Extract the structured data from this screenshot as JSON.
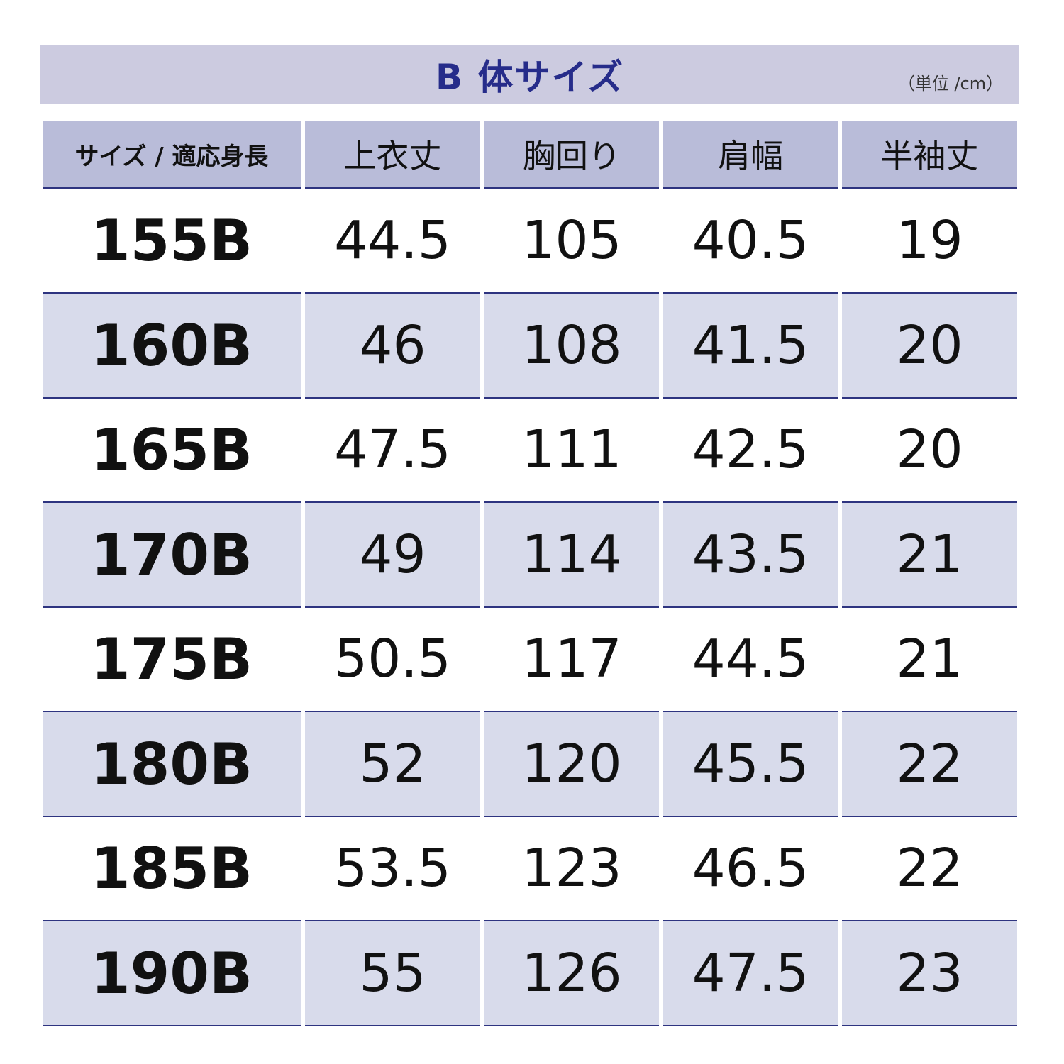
{
  "header": {
    "title": "B 体サイズ",
    "unit": "（単位 /cm）"
  },
  "table": {
    "columns": [
      "サイズ / 適応身長",
      "上衣丈",
      "胸回り",
      "肩幅",
      "半袖丈"
    ],
    "rows": [
      [
        "155B",
        "44.5",
        "105",
        "40.5",
        "19"
      ],
      [
        "160B",
        "46",
        "108",
        "41.5",
        "20"
      ],
      [
        "165B",
        "47.5",
        "111",
        "42.5",
        "20"
      ],
      [
        "170B",
        "49",
        "114",
        "43.5",
        "21"
      ],
      [
        "175B",
        "50.5",
        "117",
        "44.5",
        "21"
      ],
      [
        "180B",
        "52",
        "120",
        "45.5",
        "22"
      ],
      [
        "185B",
        "53.5",
        "123",
        "46.5",
        "22"
      ],
      [
        "190B",
        "55",
        "126",
        "47.5",
        "23"
      ]
    ]
  }
}
